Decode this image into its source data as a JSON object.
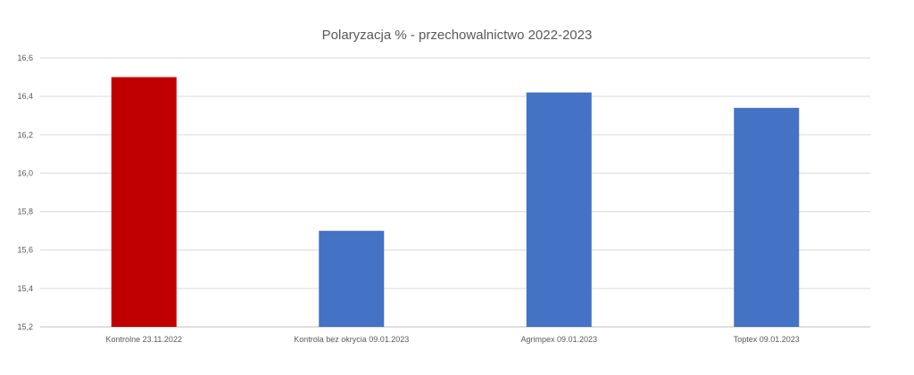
{
  "chart_data": {
    "type": "bar",
    "title": "Polaryzacja % - przechowalnictwo 2022-2023",
    "categories": [
      "Kontrolne 23.11.2022",
      "Kontrola bez okrycia 09.01.2023",
      "Agrimpex 09.01.2023",
      "Toptex 09.01.2023"
    ],
    "values": [
      16.5,
      15.7,
      16.42,
      16.34
    ],
    "bar_colors": [
      "#C00000",
      "#4472C4",
      "#4472C4",
      "#4472C4"
    ],
    "ylim": [
      15.2,
      16.6
    ],
    "yticks": [
      "15,2",
      "15,4",
      "15,6",
      "15,8",
      "16,0",
      "16,2",
      "16,4",
      "16,6"
    ],
    "ytick_values": [
      15.2,
      15.4,
      15.6,
      15.8,
      16.0,
      16.2,
      16.4,
      16.6
    ],
    "grid": true,
    "legend": "none",
    "xlabel": "",
    "ylabel": ""
  }
}
